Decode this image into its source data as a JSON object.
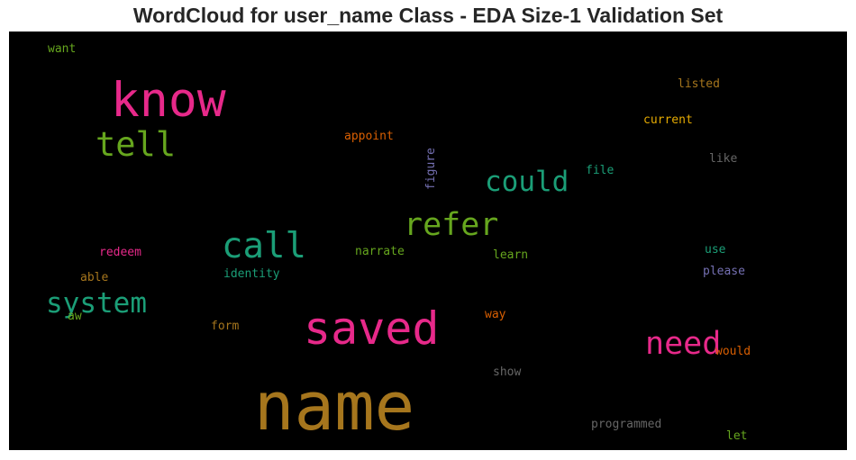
{
  "chart_data": {
    "type": "wordcloud",
    "title": "WordCloud for user_name Class - EDA Size-1 Validation Set",
    "background": "#000000",
    "words": [
      {
        "text": "name",
        "size": 1.0,
        "color": "#A6761D"
      },
      {
        "text": "know",
        "size": 0.72,
        "color": "#E7298A"
      },
      {
        "text": "saved",
        "size": 0.68,
        "color": "#E7298A"
      },
      {
        "text": "call",
        "size": 0.53,
        "color": "#1B9E77"
      },
      {
        "text": "tell",
        "size": 0.5,
        "color": "#66A61E"
      },
      {
        "text": "refer",
        "size": 0.47,
        "color": "#66A61E"
      },
      {
        "text": "need",
        "size": 0.47,
        "color": "#E7298A"
      },
      {
        "text": "system",
        "size": 0.42,
        "color": "#1B9E77"
      },
      {
        "text": "could",
        "size": 0.42,
        "color": "#1B9E77"
      },
      {
        "text": "want",
        "size": 0.3,
        "color": "#66A61E"
      },
      {
        "text": "listed",
        "size": 0.3,
        "color": "#A6761D"
      },
      {
        "text": "current",
        "size": 0.3,
        "color": "#E6AB02"
      },
      {
        "text": "appoint",
        "size": 0.3,
        "color": "#D95F02"
      },
      {
        "text": "figure",
        "size": 0.3,
        "color": "#7570B3",
        "vertical": true
      },
      {
        "text": "file",
        "size": 0.3,
        "color": "#1B9E77"
      },
      {
        "text": "like",
        "size": 0.3,
        "color": "#666666"
      },
      {
        "text": "redeem",
        "size": 0.3,
        "color": "#E7298A"
      },
      {
        "text": "identity",
        "size": 0.3,
        "color": "#1B9E77"
      },
      {
        "text": "narrate",
        "size": 0.3,
        "color": "#66A61E"
      },
      {
        "text": "learn",
        "size": 0.3,
        "color": "#66A61E"
      },
      {
        "text": "use",
        "size": 0.3,
        "color": "#1B9E77"
      },
      {
        "text": "please",
        "size": 0.3,
        "color": "#7570B3"
      },
      {
        "text": "able",
        "size": 0.3,
        "color": "#A6761D"
      },
      {
        "text": "aw",
        "size": 0.26,
        "color": "#66A61E"
      },
      {
        "text": "form",
        "size": 0.3,
        "color": "#A6761D"
      },
      {
        "text": "way",
        "size": 0.3,
        "color": "#D95F02"
      },
      {
        "text": "would",
        "size": 0.3,
        "color": "#D95F02"
      },
      {
        "text": "show",
        "size": 0.3,
        "color": "#666666"
      },
      {
        "text": "programmed",
        "size": 0.3,
        "color": "#666666"
      },
      {
        "text": "let",
        "size": 0.3,
        "color": "#66A61E"
      }
    ]
  }
}
